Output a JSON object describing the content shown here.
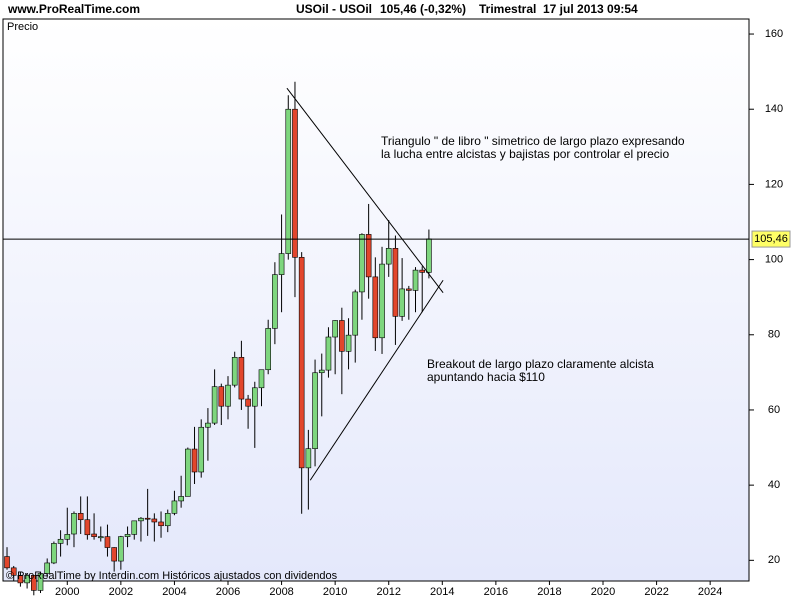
{
  "chart_data": {
    "type": "candlestick",
    "site": "www.ProRealTime.com",
    "instrument": "USOil - USOil",
    "quote": "105,46 (-0,32%)",
    "period": "Trimestral",
    "timestamp": "17 jul 2013 09:54",
    "y_axis_label": "Precio",
    "footer": "© ProRealTime by Interdin.com  Históricos ajustados con dividendos",
    "annotations": [
      {
        "lines": [
          "Triangulo \" de libro \" simetrico de largo plazo expresando",
          "la lucha entre alcistas y bajistas por controlar el precio"
        ]
      },
      {
        "lines": [
          "Breakout de largo plazo claramente alcista",
          "apuntando hacia $110"
        ]
      }
    ],
    "up_color": "#7ed67e",
    "down_color": "#e2462c",
    "xlim": [
      1997.6,
      2025.45
    ],
    "xticks": [
      2000,
      2002,
      2004,
      2006,
      2008,
      2010,
      2012,
      2014,
      2016,
      2018,
      2020,
      2022,
      2024
    ],
    "ylim": [
      14.5,
      164
    ],
    "yticks": [
      20,
      40,
      60,
      80,
      100,
      120,
      140,
      160
    ],
    "last_price": {
      "value": 105.46,
      "label": "105,46"
    },
    "trendlines": [
      {
        "x": [
          2008.2,
          2014.03
        ],
        "y": [
          145.6,
          91.2
        ]
      },
      {
        "x": [
          2009.07,
          2014.03
        ],
        "y": [
          41.3,
          94.5
        ]
      }
    ],
    "x": [
      1997.75,
      1998,
      1998.25,
      1998.5,
      1998.75,
      1999,
      1999.25,
      1999.5,
      1999.75,
      2000,
      2000.25,
      2000.5,
      2000.75,
      2001,
      2001.25,
      2001.5,
      2001.75,
      2002,
      2002.25,
      2002.5,
      2002.75,
      2003,
      2003.25,
      2003.5,
      2003.75,
      2004,
      2004.25,
      2004.5,
      2004.75,
      2005,
      2005.25,
      2005.5,
      2005.75,
      2006,
      2006.25,
      2006.5,
      2006.75,
      2007,
      2007.25,
      2007.5,
      2007.75,
      2008,
      2008.25,
      2008.5,
      2008.75,
      2009,
      2009.25,
      2009.5,
      2009.75,
      2010,
      2010.25,
      2010.5,
      2010.75,
      2011,
      2011.25,
      2011.5,
      2011.75,
      2012,
      2012.25,
      2012.5,
      2012.75,
      2013,
      2013.25,
      2013.5
    ],
    "open": [
      21,
      18,
      16,
      14,
      16,
      12,
      16.5,
      19.3,
      24.5,
      25.6,
      27,
      32.5,
      30.8,
      27,
      26,
      26.3,
      23.4,
      19.8,
      26.3,
      26.9,
      30.5,
      31.2,
      31,
      30.2,
      29.2,
      32.5,
      35.8,
      37,
      49.6,
      43.5,
      55.4,
      56.5,
      66.2,
      61,
      66.6,
      74,
      62.9,
      61,
      65.9,
      70.7,
      81.7,
      96,
      101.6,
      140,
      100.6,
      44.6,
      49.7,
      69.9,
      70.6,
      79.4,
      83.8,
      75.6,
      79.9,
      91.4,
      106.7,
      95.4,
      79.2,
      98.8,
      103,
      84.9,
      92.2,
      91.8,
      97.2,
      96.6
    ],
    "high": [
      23.5,
      18.5,
      17,
      16.5,
      16,
      17,
      20.5,
      25,
      28,
      34,
      33,
      37,
      37,
      32.5,
      29,
      29.5,
      23.5,
      26.5,
      29,
      30.5,
      31.5,
      39,
      32.5,
      33,
      33.5,
      38.5,
      42.5,
      50,
      55.5,
      57.5,
      60.5,
      70.8,
      67,
      69,
      75.5,
      78.4,
      64,
      67.5,
      70.5,
      84,
      99.3,
      112,
      143.7,
      147.3,
      102,
      54.7,
      73.4,
      75,
      82,
      83.9,
      87.2,
      84.4,
      92,
      107,
      114.8,
      100.6,
      103.4,
      110.5,
      106.4,
      100.4,
      93,
      98,
      98.2,
      108
    ],
    "low": [
      17.5,
      14.5,
      13,
      12.5,
      10.7,
      11.3,
      15.5,
      19,
      21,
      24,
      23.5,
      27,
      25.5,
      25.5,
      25,
      21,
      17,
      17.5,
      23.5,
      25.5,
      25,
      26.5,
      25,
      26,
      27.5,
      32,
      34,
      38,
      40.3,
      42,
      46.5,
      56,
      56,
      57.5,
      66,
      60,
      55,
      49.9,
      61,
      69.5,
      77.5,
      86,
      100,
      90,
      32.4,
      33.5,
      45,
      58.3,
      68.6,
      69.5,
      64.2,
      70.8,
      72.6,
      84,
      89.6,
      75.7,
      74.9,
      95.4,
      77.3,
      83.7,
      84,
      86,
      86,
      95
    ],
    "close": [
      18,
      16,
      14,
      16,
      12,
      16.5,
      19.3,
      24.5,
      25.6,
      26.9,
      32.5,
      30.8,
      26.8,
      26.3,
      26.3,
      23.4,
      19.8,
      26.3,
      26.9,
      30.5,
      31.2,
      31,
      30.2,
      29.2,
      32.5,
      35.8,
      37,
      49.6,
      43.5,
      55.4,
      56.5,
      66.2,
      61,
      66.6,
      74,
      62.9,
      61,
      65.9,
      70.7,
      81.7,
      96,
      101.6,
      140,
      100.6,
      44.6,
      49.7,
      69.9,
      70.6,
      79.4,
      83.8,
      75.6,
      79.9,
      91.4,
      106.7,
      95.4,
      79.2,
      98.8,
      103,
      84.9,
      92.2,
      91.8,
      97.2,
      96.6,
      105.5
    ]
  }
}
